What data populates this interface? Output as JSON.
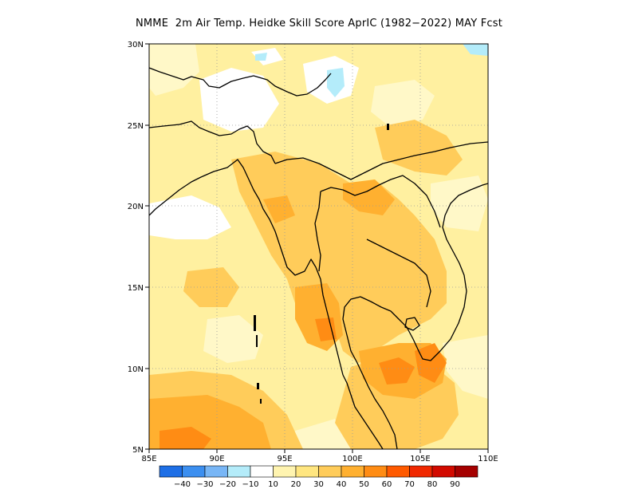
{
  "title": "NMME  2m Air Temp. Heidke Skill Score AprIC (1982−2022) MAY Fcst",
  "map": {
    "lon_range": [
      85,
      110
    ],
    "lat_range": [
      5,
      30
    ],
    "lon_ticks": [
      "85E",
      "90E",
      "95E",
      "100E",
      "105E",
      "110E"
    ],
    "lat_ticks": [
      "30N",
      "25N",
      "20N",
      "15N",
      "10N",
      "5N"
    ],
    "gridlines": "dotted"
  },
  "colorbar": {
    "colors": [
      "#1e6fe6",
      "#3c8ff0",
      "#78b6f6",
      "#b4ecfa",
      "#ffffff",
      "#fff4b0",
      "#ffe680",
      "#ffcc5a",
      "#ffb030",
      "#ff8c14",
      "#ff5a00",
      "#f02800",
      "#d20a00",
      "#a50000"
    ],
    "labels": [
      "−40",
      "−30",
      "−20",
      "−10",
      "10",
      "20",
      "30",
      "40",
      "50",
      "60",
      "70",
      "80",
      "90"
    ]
  },
  "colors": {
    "land_border": "#000000",
    "default_fill": "#fff0a0"
  }
}
